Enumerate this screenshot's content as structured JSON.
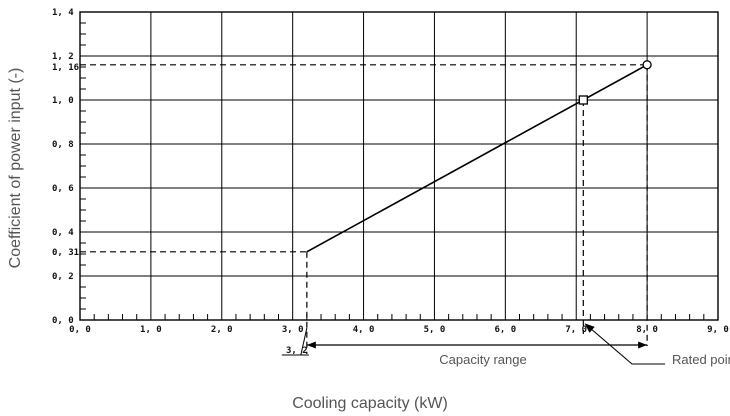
{
  "chart_data": {
    "type": "line",
    "xlabel": "Cooling capacity (kW)",
    "ylabel": "Coefficient of power input (-)",
    "xlim": [
      0,
      9
    ],
    "ylim": [
      0,
      1.4
    ],
    "x_tick_labels": [
      "0, 0",
      "1, 0",
      "2, 0",
      "3, 0",
      "4, 0",
      "5, 0",
      "6, 0",
      "7, 0",
      "8, 0",
      "9, 0"
    ],
    "y_tick_labels": [
      "0, 0",
      "0, 2",
      "0, 4",
      "0, 6",
      "0, 8",
      "1, 0",
      "1, 2",
      "1, 4"
    ],
    "extra_x_label": "3, 2",
    "extra_y_labels": [
      "0, 31",
      "1, 16"
    ],
    "grid": true,
    "series": [
      {
        "x": [
          3.2,
          8.0
        ],
        "y": [
          0.31,
          1.16
        ]
      }
    ],
    "markers": [
      {
        "shape": "square",
        "x": 7.1,
        "y": 1.0
      },
      {
        "shape": "circle",
        "x": 8.0,
        "y": 1.16
      }
    ],
    "annotations": {
      "capacity_range": {
        "label": "Capacity range",
        "from": 3.2,
        "to": 8.0
      },
      "rated_point": {
        "label": "Rated point",
        "x": 7.1
      }
    }
  }
}
